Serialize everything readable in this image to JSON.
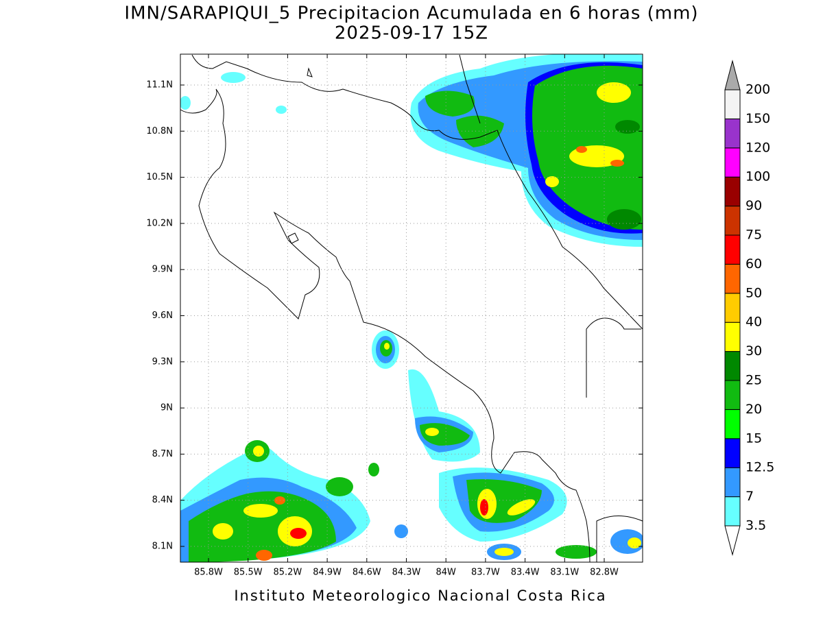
{
  "title": "IMN/SARAPIQUI_5 Precipitacion Acumulada en 6 horas (mm)",
  "subtitle": "2025-09-17 15Z",
  "lat_ticks": [
    "11.1N",
    "10.8N",
    "10.5N",
    "10.2N",
    "9.9N",
    "9.6N",
    "9.3N",
    "9N",
    "8.7N",
    "8.4N",
    "8.1N"
  ],
  "lon_ticks": [
    "85.8W",
    "85.5W",
    "85.2W",
    "84.9W",
    "84.6W",
    "84.3W",
    "84W",
    "83.7W",
    "83.4W",
    "83.1W",
    "82.8W"
  ],
  "colorbar": {
    "levels": [
      "3.5",
      "7",
      "12.5",
      "15",
      "20",
      "25",
      "30",
      "40",
      "50",
      "60",
      "75",
      "90",
      "100",
      "120",
      "150",
      "200"
    ],
    "colors": [
      "#66ffff",
      "#3399ff",
      "#0000ff",
      "#00ff00",
      "#11bb11",
      "#008800",
      "#ffff00",
      "#ffcc00",
      "#ff6600",
      "#ff0000",
      "#cc3300",
      "#990000",
      "#ff00ff",
      "#9933cc",
      "#f4f4f4"
    ],
    "under_color": "#ffffff",
    "over_color": "#aaaaaa"
  },
  "credit": "Instituto Meteorologico Nacional Costa Rica"
}
